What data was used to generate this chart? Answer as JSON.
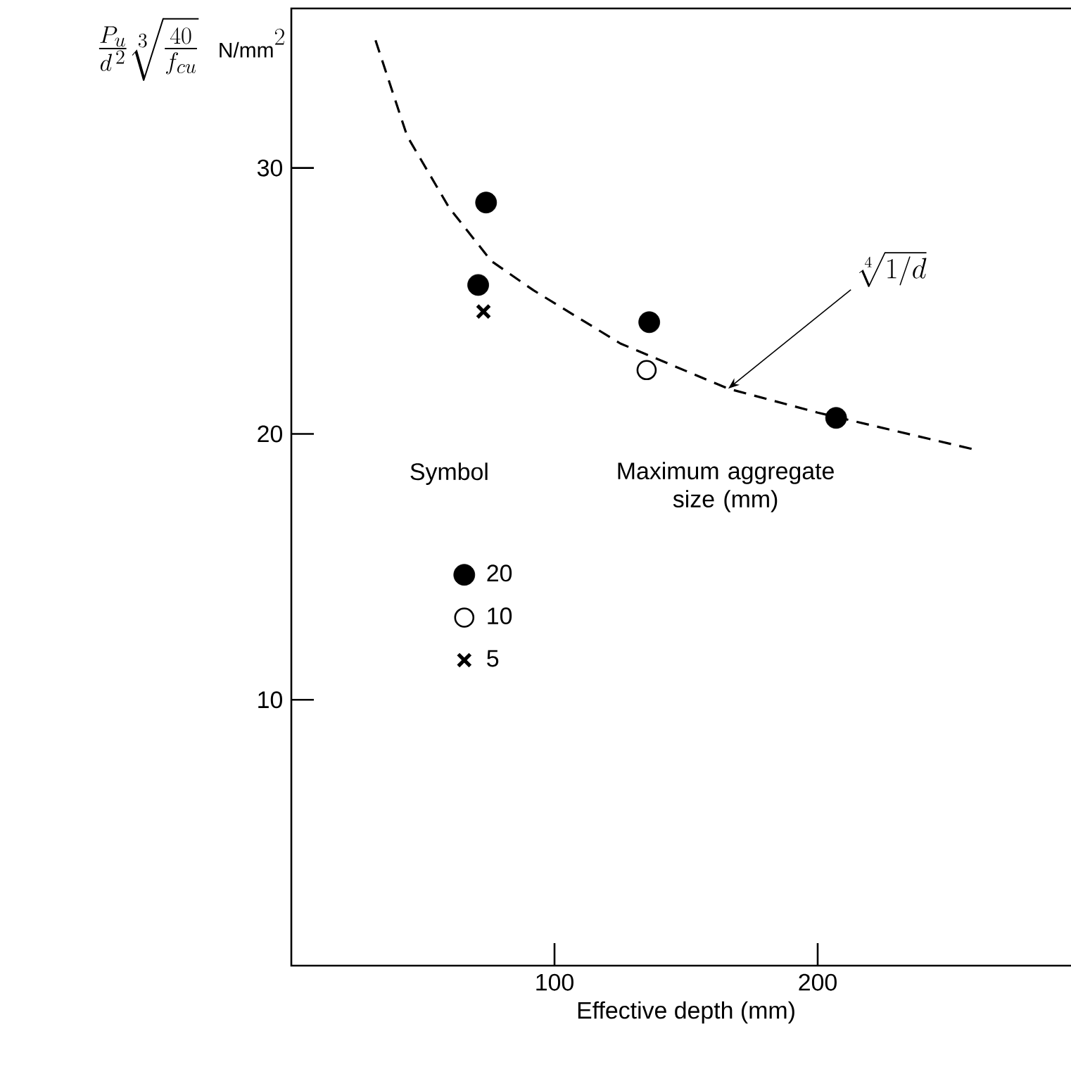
{
  "chart_data": {
    "type": "scatter",
    "xlabel": "Effective depth (mm)",
    "ylabel": "\\frac{P_u}{d^{\\,2}}\\sqrt[3]{\\frac{40}{f_{cu}}}\\;\\;\\mbox{\\fontsize{15}{18}\\selectfont N/mm}^{2}",
    "legend_title": "Maximum aggregate size (mm)",
    "annotations": [
      "Symbol",
      {
        "text": "\\sqrt[4]{1/d}",
        "x": 166,
        "y": 21.7
      }
    ],
    "xlim": [
      0,
      300
    ],
    "xticks": [
      100,
      200
    ],
    "ylim": [
      0,
      36
    ],
    "yticks": [
      10,
      20,
      30
    ],
    "grid": false,
    "legend": "left",
    "series": [
      {
        "name": "20",
        "color": "#000000",
        "marker": "circle",
        "x": [
          74,
          71,
          136,
          207
        ],
        "values": [
          28.7,
          25.6,
          24.2,
          20.6
        ]
      },
      {
        "name": "10",
        "color": "#000000",
        "marker": "open circle",
        "x": [
          135
        ],
        "values": [
          22.4
        ]
      },
      {
        "name": "5",
        "color": "#000000",
        "marker": "cross",
        "x": [
          73
        ],
        "values": [
          24.6
        ]
      },
      {
        "type": "line",
        "color": "#000000",
        "marker": "none",
        "line_style": "dashed",
        "x": [
          32,
          44,
          60,
          76,
          92,
          125,
          166,
          200,
          260
        ],
        "values": [
          34.8,
          31.2,
          28.5,
          26.5,
          25.4,
          23.4,
          21.7,
          20.8,
          19.4
        ]
      }
    ]
  }
}
